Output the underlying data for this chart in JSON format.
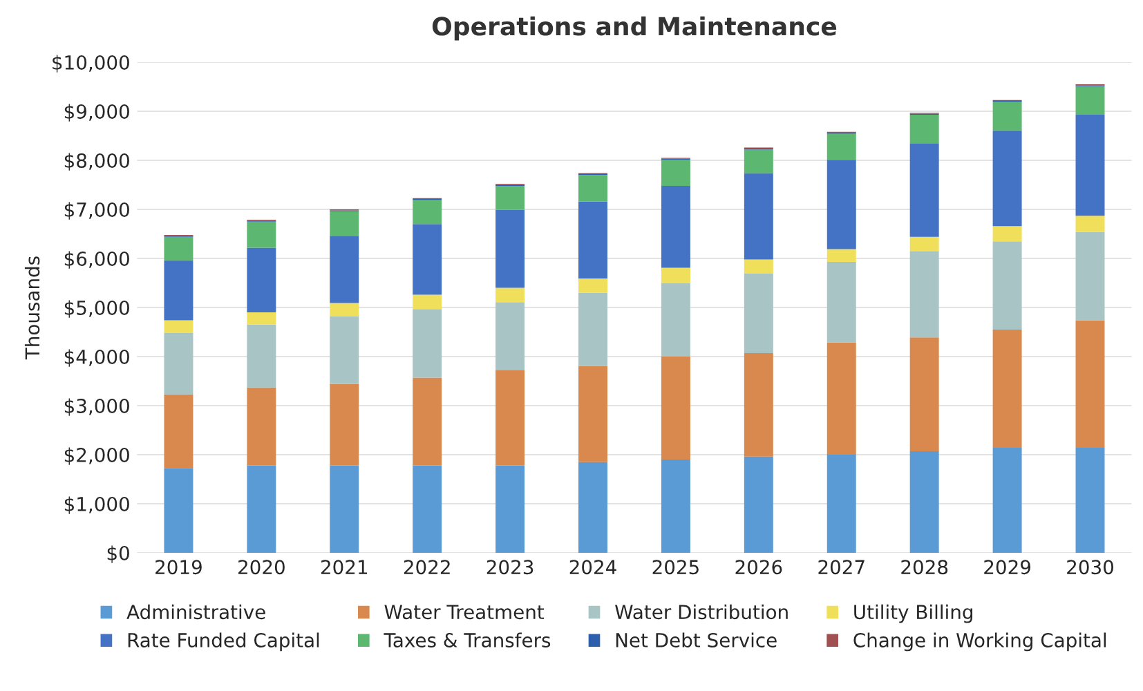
{
  "chart_data": {
    "type": "bar",
    "title": "Operations and Maintenance",
    "ylabel": "Thousands",
    "stacked": true,
    "grid": "y",
    "legend": "bottom",
    "categories": [
      "2019",
      "2020",
      "2021",
      "2022",
      "2023",
      "2024",
      "2025",
      "2026",
      "2027",
      "2028",
      "2029",
      "2030"
    ],
    "ylim": [
      0,
      10000
    ],
    "yticks": [
      {
        "value": 0,
        "label": "$0"
      },
      {
        "value": 1000,
        "label": "$1,000"
      },
      {
        "value": 2000,
        "label": "$2,000"
      },
      {
        "value": 3000,
        "label": "$3,000"
      },
      {
        "value": 4000,
        "label": "$4,000"
      },
      {
        "value": 5000,
        "label": "$5,000"
      },
      {
        "value": 6000,
        "label": "$6,000"
      },
      {
        "value": 7000,
        "label": "$7,000"
      },
      {
        "value": 8000,
        "label": "$8,000"
      },
      {
        "value": 9000,
        "label": "$9,000"
      },
      {
        "value": 10000,
        "label": "$10,000"
      }
    ],
    "series": [
      {
        "name": "Administrative",
        "color": "#5b9bd5",
        "values": [
          1730,
          1780,
          1780,
          1780,
          1780,
          1850,
          1900,
          1960,
          2000,
          2070,
          2140,
          2140
        ]
      },
      {
        "name": "Water Treatment",
        "color": "#d9894e",
        "values": [
          1500,
          1590,
          1660,
          1790,
          1950,
          1960,
          2100,
          2110,
          2290,
          2320,
          2410,
          2600
        ]
      },
      {
        "name": "Water Distribution",
        "color": "#a9c4c4",
        "values": [
          1250,
          1280,
          1380,
          1400,
          1380,
          1490,
          1500,
          1620,
          1640,
          1760,
          1800,
          1800
        ]
      },
      {
        "name": "Utility Billing",
        "color": "#f0df5a",
        "values": [
          260,
          250,
          270,
          290,
          290,
          290,
          310,
          290,
          260,
          290,
          310,
          330
        ]
      },
      {
        "name": "Rate Funded Capital",
        "color": "#4472c4",
        "values": [
          1220,
          1320,
          1370,
          1440,
          1590,
          1570,
          1670,
          1760,
          1820,
          1910,
          1950,
          2060
        ]
      },
      {
        "name": "Taxes & Transfers",
        "color": "#5cb870",
        "values": [
          480,
          530,
          500,
          490,
          490,
          540,
          530,
          480,
          530,
          580,
          580,
          580
        ]
      },
      {
        "name": "Net Debt Service",
        "color": "#2e5fad",
        "values": [
          20,
          20,
          20,
          20,
          20,
          20,
          20,
          20,
          20,
          20,
          20,
          20
        ]
      },
      {
        "name": "Change in Working Capital",
        "color": "#a05050",
        "values": [
          20,
          20,
          20,
          20,
          20,
          20,
          20,
          20,
          20,
          20,
          20,
          20
        ]
      }
    ]
  }
}
